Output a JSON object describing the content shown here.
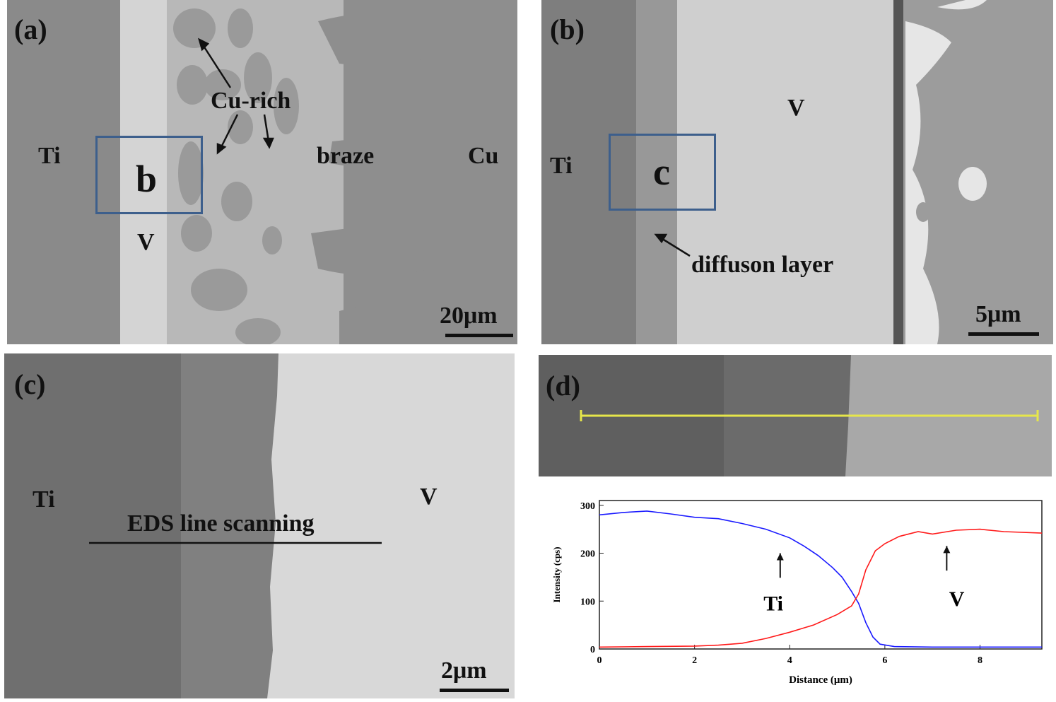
{
  "panels": {
    "a": {
      "label": "(a)",
      "ti": "Ti",
      "v": "V",
      "cu_rich": "Cu-rich",
      "braze": "braze",
      "cu": "Cu",
      "box_label": "b",
      "scale": "20μm"
    },
    "b": {
      "label": "(b)",
      "ti": "Ti",
      "v": "V",
      "box_label": "c",
      "diffusion": "diffuson layer",
      "scale": "5μm"
    },
    "c": {
      "label": "(c)",
      "ti": "Ti",
      "v": "V",
      "eds": "EDS line scanning",
      "scale": "2μm"
    },
    "d": {
      "label": "(d)"
    }
  },
  "chart_data": {
    "type": "line",
    "xlabel": "Distance (μm)",
    "ylabel": "Intensity (cps)",
    "xlim": [
      0,
      9.3
    ],
    "ylim": [
      0,
      310
    ],
    "xticks": [
      0,
      2,
      4,
      6,
      8
    ],
    "yticks": [
      0,
      100,
      200,
      300
    ],
    "series": [
      {
        "name": "Ti",
        "color": "#1a1aff",
        "x": [
          0,
          0.5,
          1.0,
          1.5,
          2.0,
          2.5,
          3.0,
          3.5,
          4.0,
          4.3,
          4.6,
          4.9,
          5.1,
          5.3,
          5.45,
          5.6,
          5.75,
          5.9,
          6.2,
          7.0,
          8.0,
          9.3
        ],
        "y": [
          280,
          285,
          288,
          282,
          275,
          272,
          262,
          250,
          232,
          215,
          195,
          170,
          150,
          120,
          95,
          55,
          25,
          10,
          5,
          4,
          4,
          4
        ]
      },
      {
        "name": "V",
        "color": "#ff1a1a",
        "x": [
          0,
          1.0,
          2.0,
          2.5,
          3.0,
          3.5,
          4.0,
          4.5,
          5.0,
          5.3,
          5.45,
          5.6,
          5.8,
          6.0,
          6.3,
          6.7,
          7.0,
          7.5,
          8.0,
          8.5,
          9.3
        ],
        "y": [
          4,
          5,
          6,
          8,
          12,
          22,
          35,
          50,
          72,
          90,
          115,
          165,
          205,
          220,
          235,
          245,
          240,
          248,
          250,
          245,
          242
        ]
      }
    ],
    "annotations": [
      {
        "text": "Ti",
        "series": "Ti"
      },
      {
        "text": "V",
        "series": "V"
      }
    ]
  }
}
